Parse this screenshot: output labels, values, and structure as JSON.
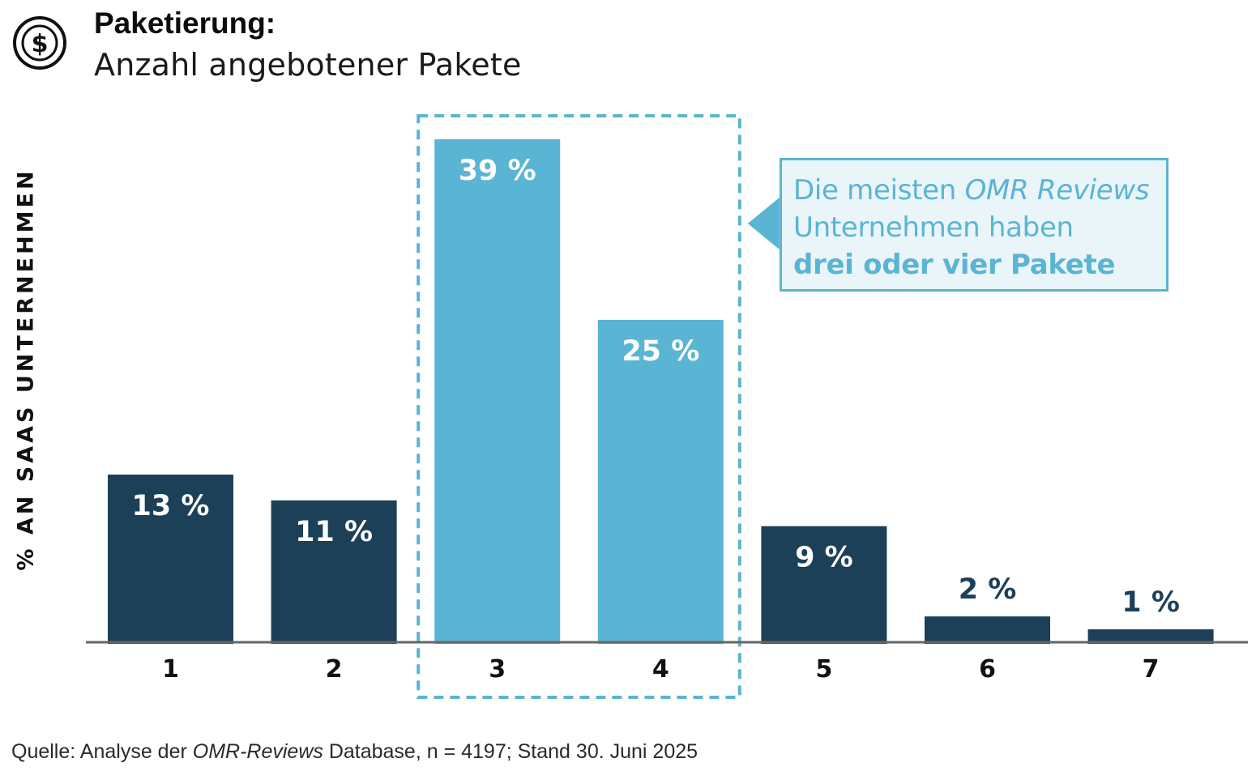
{
  "header": {
    "title": "Paketierung:",
    "subtitle": "Anzahl angebotener Pakete"
  },
  "icon": "dollar-coin-icon",
  "callout": {
    "line1_prefix": "Die meisten ",
    "line1_emphasis": "OMR Reviews",
    "line2": "Unternehmen haben",
    "line3": "drei oder vier Pakete"
  },
  "source": {
    "prefix": "Quelle: Analyse der ",
    "emphasis": "OMR-Reviews",
    "suffix": " Database, n = 4197; Stand 30. Juni 2025"
  },
  "colors": {
    "dark_bar": "#1c4058",
    "highlight_bar": "#5ab4d3",
    "axis": "#666666",
    "label_outside": "#1c4058"
  },
  "chart_data": {
    "type": "bar",
    "ylabel": "% AN SAAS UNTERNEHMEN",
    "categories": [
      "1",
      "2",
      "3",
      "4",
      "5",
      "6",
      "7"
    ],
    "values": [
      13,
      11,
      39,
      25,
      9,
      2,
      1
    ],
    "value_labels": [
      "13 %",
      "11 %",
      "39 %",
      "25 %",
      "9 %",
      "2 %",
      "1 %"
    ],
    "highlighted": [
      "3",
      "4"
    ],
    "ylim": [
      0,
      39
    ],
    "grid": false,
    "legend": "none"
  }
}
